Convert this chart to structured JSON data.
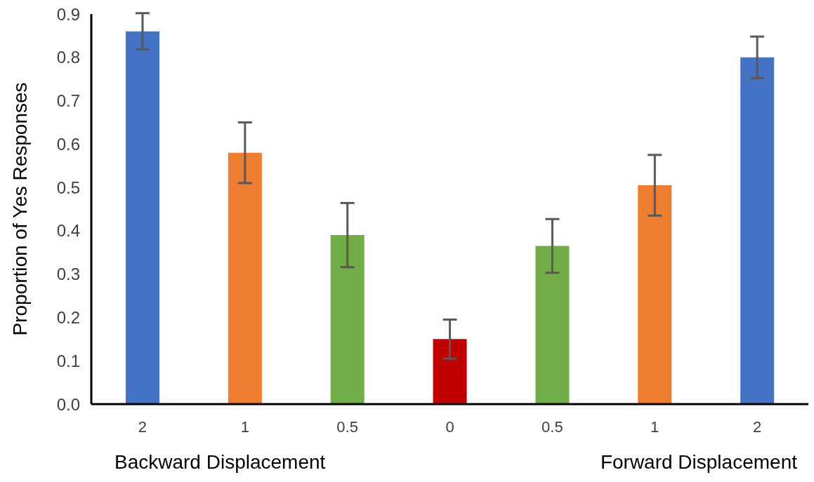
{
  "chart_data": {
    "type": "bar",
    "ylabel": "Proportion of Yes Responses",
    "categories": [
      "2",
      "1",
      "0.5",
      "0",
      "0.5",
      "1",
      "2"
    ],
    "values": [
      0.86,
      0.58,
      0.39,
      0.15,
      0.365,
      0.505,
      0.8
    ],
    "errors": [
      0.042,
      0.07,
      0.074,
      0.045,
      0.062,
      0.07,
      0.048
    ],
    "colors": [
      "#4472c4",
      "#ed7d31",
      "#70ad47",
      "#c00000",
      "#70ad47",
      "#ed7d31",
      "#4472c4"
    ],
    "ylim": [
      0,
      0.9
    ],
    "yticks": [
      {
        "value": 0,
        "label": "0.0"
      },
      0.1,
      0.2,
      0.3,
      0.4,
      0.5,
      0.6,
      0.7,
      0.8,
      0.9
    ],
    "grid": false,
    "legend": false,
    "annotations": [
      "Backward Displacement",
      "Forward Displacement"
    ]
  }
}
